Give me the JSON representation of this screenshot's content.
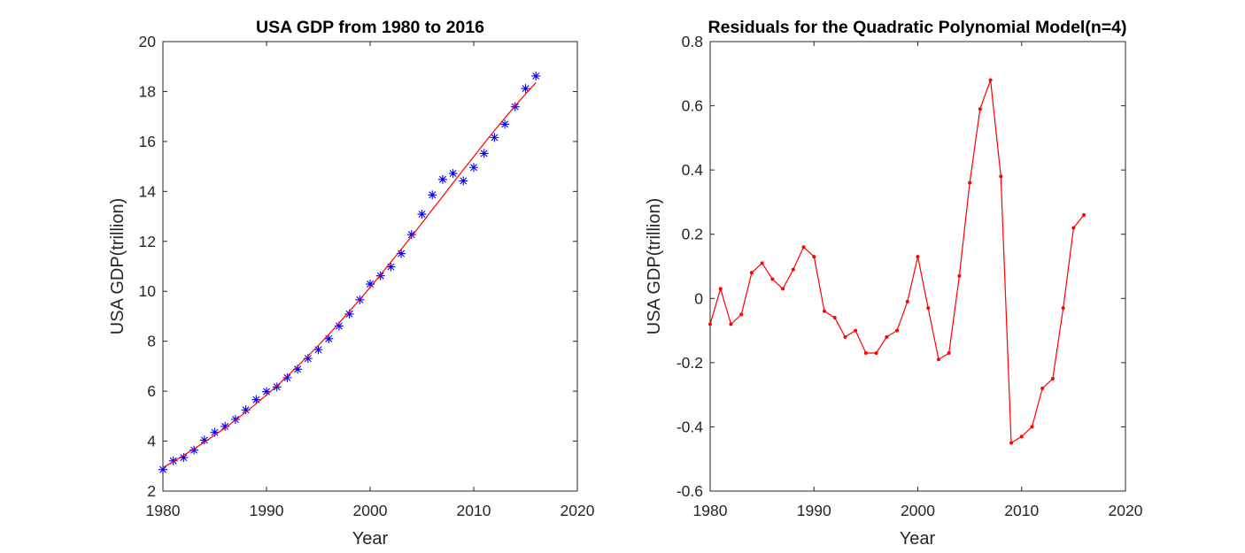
{
  "chart_data": [
    {
      "type": "scatter",
      "title": "USA GDP from 1980 to 2016",
      "xlabel": "Year",
      "ylabel": "USA GDP(trillion)",
      "xlim": [
        1980,
        2020
      ],
      "ylim": [
        2,
        20
      ],
      "xticks": [
        1980,
        1990,
        2000,
        2010,
        2020
      ],
      "yticks": [
        2,
        4,
        6,
        8,
        10,
        12,
        14,
        16,
        18,
        20
      ],
      "grid": false,
      "series": [
        {
          "marker": "asterisk",
          "color": "#0000ff",
          "x": [
            1980,
            1981,
            1982,
            1983,
            1984,
            1985,
            1986,
            1987,
            1988,
            1989,
            1990,
            1991,
            1992,
            1993,
            1994,
            1995,
            1996,
            1997,
            1998,
            1999,
            2000,
            2001,
            2002,
            2003,
            2004,
            2005,
            2006,
            2007,
            2008,
            2009,
            2010,
            2011,
            2012,
            2013,
            2014,
            2015,
            2016
          ],
          "y": [
            2.86,
            3.21,
            3.34,
            3.64,
            4.04,
            4.35,
            4.59,
            4.87,
            5.25,
            5.66,
            5.98,
            6.17,
            6.54,
            6.88,
            7.31,
            7.66,
            8.1,
            8.61,
            9.09,
            9.66,
            10.29,
            10.62,
            10.98,
            11.51,
            12.27,
            13.09,
            13.86,
            14.48,
            14.72,
            14.42,
            14.96,
            15.52,
            16.16,
            16.69,
            17.39,
            18.12,
            18.62
          ]
        },
        {
          "line": true,
          "color": "#ff0000",
          "x": [
            1980,
            1981,
            1982,
            1983,
            1984,
            1985,
            1986,
            1987,
            1988,
            1989,
            1990,
            1991,
            1992,
            1993,
            1994,
            1995,
            1996,
            1997,
            1998,
            1999,
            2000,
            2001,
            2002,
            2003,
            2004,
            2005,
            2006,
            2007,
            2008,
            2009,
            2010,
            2011,
            2012,
            2013,
            2014,
            2015,
            2016
          ],
          "y": [
            2.94,
            3.18,
            3.43,
            3.69,
            3.96,
            4.24,
            4.53,
            4.84,
            5.16,
            5.5,
            5.85,
            6.21,
            6.6,
            7.0,
            7.41,
            7.83,
            8.27,
            8.73,
            9.2,
            9.67,
            10.16,
            10.66,
            11.17,
            11.68,
            12.2,
            12.73,
            13.27,
            13.8,
            14.34,
            14.87,
            15.39,
            15.92,
            16.44,
            16.94,
            17.43,
            17.9,
            18.36
          ]
        }
      ]
    },
    {
      "type": "line",
      "title": "Residuals for the Quadratic Polynomial Model(n=4)",
      "xlabel": "Year",
      "ylabel": "USA GDP(trillion)",
      "xlim": [
        1980,
        2020
      ],
      "ylim": [
        -0.6,
        0.8
      ],
      "xticks": [
        1980,
        1990,
        2000,
        2010,
        2020
      ],
      "yticks": [
        -0.6,
        -0.4,
        -0.2,
        0,
        0.2,
        0.4,
        0.6,
        0.8
      ],
      "grid": false,
      "series": [
        {
          "marker": "dot",
          "color": "#ff0000",
          "x": [
            1980,
            1981,
            1982,
            1983,
            1984,
            1985,
            1986,
            1987,
            1988,
            1989,
            1990,
            1991,
            1992,
            1993,
            1994,
            1995,
            1996,
            1997,
            1998,
            1999,
            2000,
            2001,
            2002,
            2003,
            2004,
            2005,
            2006,
            2007,
            2008,
            2009,
            2010,
            2011,
            2012,
            2013,
            2014,
            2015,
            2016
          ],
          "y": [
            -0.08,
            0.03,
            -0.08,
            -0.05,
            0.08,
            0.11,
            0.06,
            0.03,
            0.09,
            0.16,
            0.13,
            -0.04,
            -0.06,
            -0.12,
            -0.1,
            -0.17,
            -0.17,
            -0.12,
            -0.1,
            -0.01,
            0.13,
            -0.03,
            -0.19,
            -0.17,
            0.07,
            0.36,
            0.59,
            0.68,
            0.38,
            -0.45,
            -0.43,
            -0.4,
            -0.28,
            -0.25,
            -0.03,
            0.22,
            0.26
          ]
        }
      ]
    }
  ]
}
